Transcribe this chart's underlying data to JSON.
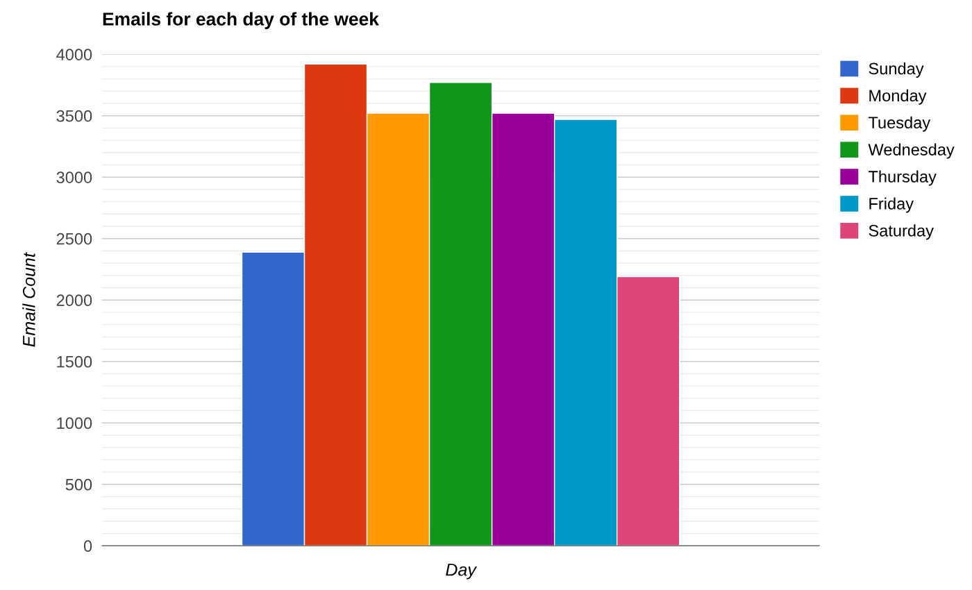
{
  "chart_data": {
    "type": "bar",
    "title": "Emails for each day of the week",
    "xlabel": "Day",
    "ylabel": "Email Count",
    "categories": [
      null
    ],
    "series": [
      {
        "name": "Sunday",
        "color": "#3366cc",
        "values": [
          2390
        ]
      },
      {
        "name": "Monday",
        "color": "#dc3912",
        "values": [
          3920
        ]
      },
      {
        "name": "Tuesday",
        "color": "#ff9900",
        "values": [
          3520
        ]
      },
      {
        "name": "Wednesday",
        "color": "#109618",
        "values": [
          3770
        ]
      },
      {
        "name": "Thursday",
        "color": "#990099",
        "values": [
          3520
        ]
      },
      {
        "name": "Friday",
        "color": "#0099c6",
        "values": [
          3470
        ]
      },
      {
        "name": "Saturday",
        "color": "#dd4477",
        "values": [
          2190
        ]
      }
    ],
    "ylim": [
      0,
      4000
    ],
    "yticks": [
      0,
      {
        "value": 100,
        "label": null
      },
      {
        "value": 200,
        "label": null
      },
      {
        "value": 300,
        "label": null
      },
      {
        "value": 400,
        "label": null
      },
      500,
      {
        "value": 600,
        "label": null
      },
      {
        "value": 700,
        "label": null
      },
      {
        "value": 800,
        "label": null
      },
      {
        "value": 900,
        "label": null
      },
      1000,
      {
        "value": 1100,
        "label": null
      },
      {
        "value": 1200,
        "label": null
      },
      {
        "value": 1300,
        "label": null
      },
      {
        "value": 1400,
        "label": null
      },
      1500,
      {
        "value": 1600,
        "label": null
      },
      {
        "value": 1700,
        "label": null
      },
      {
        "value": 1800,
        "label": null
      },
      {
        "value": 1900,
        "label": null
      },
      2000,
      {
        "value": 2100,
        "label": null
      },
      {
        "value": 2200,
        "label": null
      },
      {
        "value": 2300,
        "label": null
      },
      {
        "value": 2400,
        "label": null
      },
      2500,
      {
        "value": 2600,
        "label": null
      },
      {
        "value": 2700,
        "label": null
      },
      {
        "value": 2800,
        "label": null
      },
      {
        "value": 2900,
        "label": null
      },
      3000,
      {
        "value": 3100,
        "label": null
      },
      {
        "value": 3200,
        "label": null
      },
      {
        "value": 3300,
        "label": null
      },
      {
        "value": 3400,
        "label": null
      },
      3500,
      {
        "value": 3600,
        "label": null
      },
      {
        "value": 3700,
        "label": null
      },
      {
        "value": 3800,
        "label": null
      },
      {
        "value": 3900,
        "label": null
      },
      4000
    ],
    "grid": "y",
    "legend": "right"
  }
}
